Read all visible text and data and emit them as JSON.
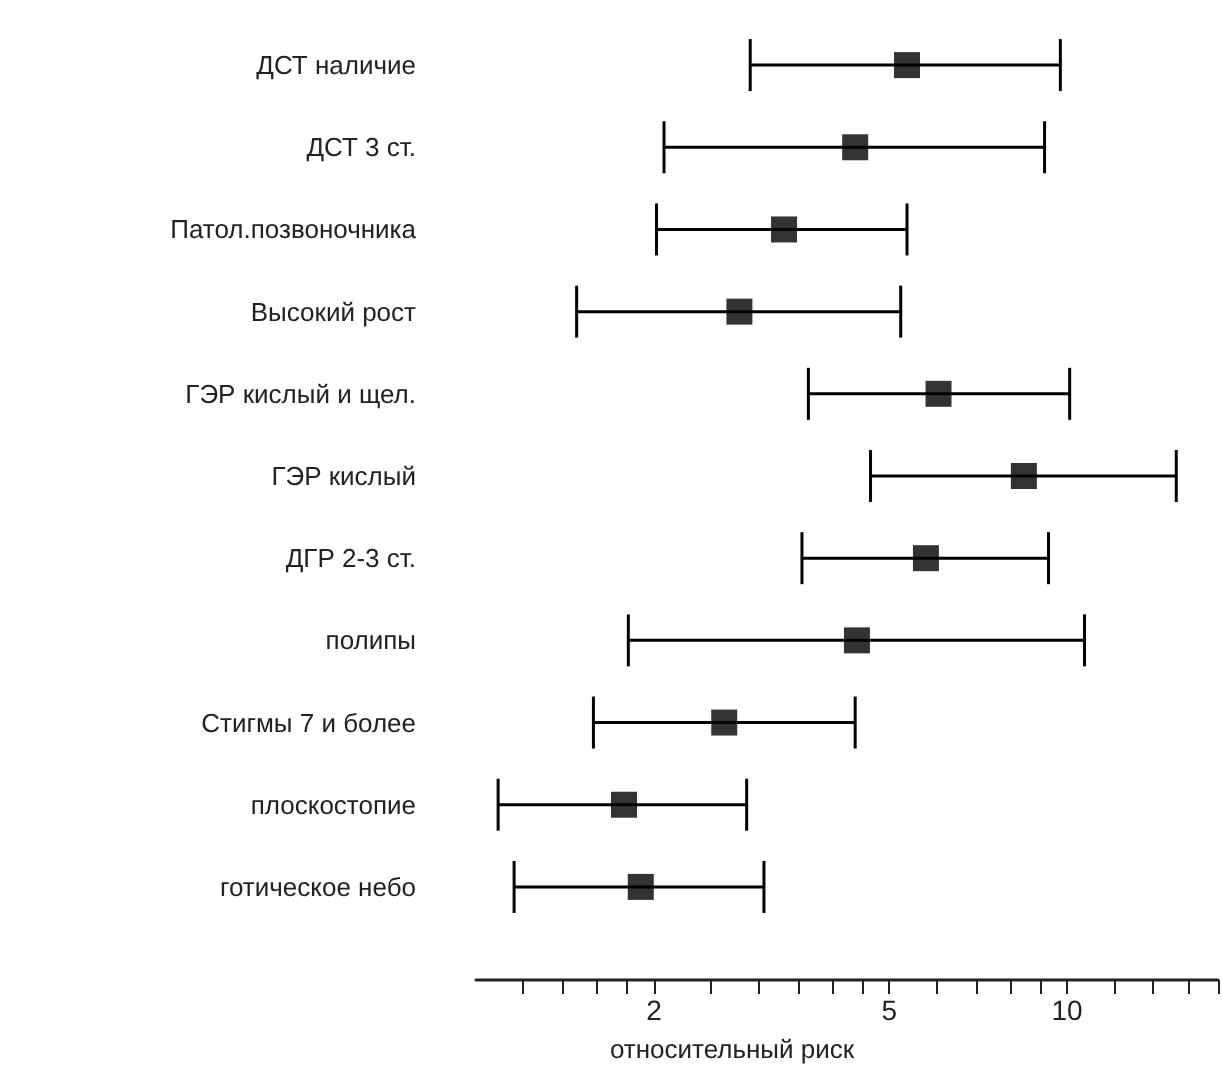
{
  "chart_data": {
    "type": "scatter",
    "orientation": "horizontal",
    "xlabel": "относительный риск",
    "log": "x",
    "marker": "square",
    "grid": false,
    "categories": [
      "ДСТ наличие",
      "ДСТ 3 ст.",
      "Патол.позвоночника",
      "Высокий рост",
      "ГЭР кислый и щел.",
      "ГЭР кислый",
      "ДГР 2-3 ст.",
      "полипы",
      "Стигмы 7 и более",
      "плоскостопие",
      "готическое небо"
    ],
    "values": [
      5.36,
      4.38,
      3.32,
      2.79,
      6.06,
      8.45,
      5.77,
      4.41,
      2.63,
      1.78,
      1.9
    ],
    "errors": [
      [
        2.91,
        9.74
      ],
      [
        2.08,
        9.16
      ],
      [
        2.02,
        5.36
      ],
      [
        1.48,
        5.23
      ],
      [
        3.65,
        10.1
      ],
      [
        4.65,
        15.3
      ],
      [
        3.56,
        9.3
      ],
      [
        1.81,
        10.7
      ],
      [
        1.58,
        4.38
      ],
      [
        1.09,
        2.87
      ],
      [
        1.16,
        3.07
      ]
    ],
    "color": "#000000",
    "xlim": [
      1,
      18
    ],
    "xticks": [
      {
        "value": 1.2,
        "label": null
      },
      {
        "value": 1.4,
        "label": null
      },
      {
        "value": 1.6,
        "label": null
      },
      {
        "value": 1.8,
        "label": null
      },
      2,
      {
        "value": 2.5,
        "label": null
      },
      {
        "value": 3,
        "label": null
      },
      {
        "value": 3.5,
        "label": null
      },
      {
        "value": 4,
        "label": null
      },
      {
        "value": 4.5,
        "label": null
      },
      5,
      {
        "value": 6,
        "label": null
      },
      {
        "value": 7,
        "label": null
      },
      {
        "value": 8,
        "label": null
      },
      {
        "value": 9,
        "label": null
      },
      10,
      {
        "value": 12,
        "label": null
      },
      {
        "value": 14,
        "label": null
      },
      {
        "value": 16,
        "label": null
      },
      {
        "value": 18,
        "label": null
      }
    ]
  }
}
